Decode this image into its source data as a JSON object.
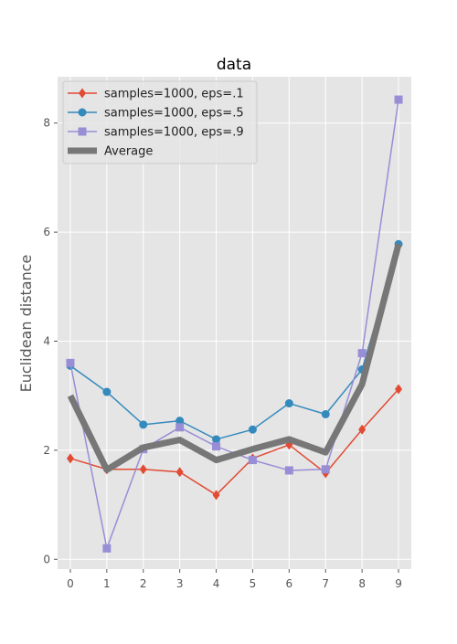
{
  "chart_data": {
    "type": "line",
    "title": "data",
    "xlabel": "",
    "ylabel": "Euclidean distance",
    "x": [
      0,
      1,
      2,
      3,
      4,
      5,
      6,
      7,
      8,
      9
    ],
    "xticks": [
      "0",
      "1",
      "2",
      "3",
      "4",
      "5",
      "6",
      "7",
      "8",
      "9"
    ],
    "yticks": [
      "0",
      "2",
      "4",
      "6",
      "8"
    ],
    "xlim": [
      -0.35,
      9.35
    ],
    "ylim": [
      -0.18,
      8.85
    ],
    "grid": true,
    "legend_position": "top-left",
    "series": [
      {
        "name": "samples=1000, eps=.1",
        "color": "#E24A33",
        "marker": "diamond",
        "values": [
          1.85,
          1.65,
          1.65,
          1.6,
          1.18,
          1.85,
          2.1,
          1.58,
          2.38,
          3.12
        ]
      },
      {
        "name": "samples=1000, eps=.5",
        "color": "#348ABD",
        "marker": "circle",
        "values": [
          3.55,
          3.07,
          2.47,
          2.54,
          2.2,
          2.38,
          2.86,
          2.66,
          3.48,
          5.78
        ]
      },
      {
        "name": "samples=1000, eps=.9",
        "color": "#988ED5",
        "marker": "square",
        "values": [
          3.6,
          0.2,
          2.02,
          2.42,
          2.07,
          1.82,
          1.63,
          1.65,
          3.78,
          8.43
        ]
      },
      {
        "name": "Average",
        "color": "#777777",
        "marker": "none",
        "values": [
          3.0,
          1.64,
          2.05,
          2.19,
          1.82,
          2.02,
          2.2,
          1.96,
          3.21,
          5.78
        ]
      }
    ]
  }
}
